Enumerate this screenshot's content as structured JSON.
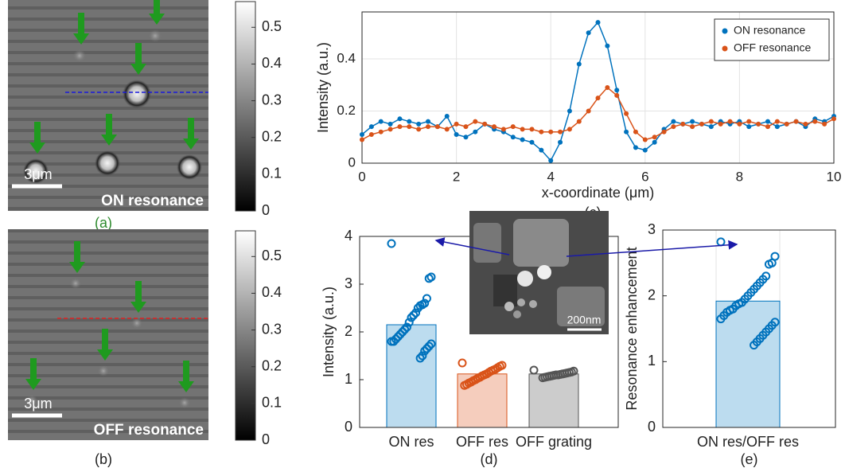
{
  "chart_data": [
    {
      "type": "image",
      "label": "(a)",
      "label_color": "#2e8b2e",
      "scale_bar": "3μm",
      "caption": "ON resonance",
      "line_color": "#1a1adc",
      "ylim": [
        0,
        0.57
      ],
      "yticks": [
        0,
        0.1,
        0.2,
        0.3,
        0.4,
        0.5
      ]
    },
    {
      "type": "image",
      "label": "(b)",
      "label_color": "#222222",
      "scale_bar": "3μm",
      "caption": "OFF resonance",
      "line_color": "#e02020",
      "ylim": [
        0,
        0.57
      ],
      "yticks": [
        0,
        0.1,
        0.2,
        0.3,
        0.4,
        0.5
      ]
    },
    {
      "type": "line",
      "label": "(c)",
      "xlabel": "x-coordinate (μm)",
      "ylabel": "Intensity (a.u.)",
      "grid": true,
      "legend": "upper right",
      "xlim": [
        0,
        10
      ],
      "xticks": [
        0,
        2,
        4,
        6,
        8,
        10
      ],
      "ylim": [
        0,
        0.58
      ],
      "yticks": [
        0,
        0.2,
        0.4
      ],
      "x": [
        0,
        0.2,
        0.4,
        0.6,
        0.8,
        1,
        1.2,
        1.4,
        1.6,
        1.8,
        2,
        2.2,
        2.4,
        2.6,
        2.8,
        3,
        3.2,
        3.4,
        3.6,
        3.8,
        4,
        4.2,
        4.4,
        4.6,
        4.8,
        5,
        5.2,
        5.4,
        5.6,
        5.8,
        6,
        6.2,
        6.4,
        6.6,
        6.8,
        7,
        7.2,
        7.4,
        7.6,
        7.8,
        8,
        8.2,
        8.4,
        8.6,
        8.8,
        9,
        9.2,
        9.4,
        9.6,
        9.8,
        10
      ],
      "series": [
        {
          "name": "ON resonance",
          "color": "#0072bd",
          "values": [
            0.11,
            0.14,
            0.16,
            0.15,
            0.17,
            0.16,
            0.15,
            0.16,
            0.14,
            0.18,
            0.11,
            0.1,
            0.12,
            0.15,
            0.13,
            0.12,
            0.1,
            0.09,
            0.08,
            0.05,
            0.01,
            0.08,
            0.2,
            0.38,
            0.5,
            0.54,
            0.45,
            0.28,
            0.12,
            0.06,
            0.05,
            0.08,
            0.13,
            0.16,
            0.15,
            0.16,
            0.15,
            0.14,
            0.16,
            0.15,
            0.16,
            0.14,
            0.15,
            0.16,
            0.14,
            0.15,
            0.16,
            0.14,
            0.17,
            0.16,
            0.18
          ]
        },
        {
          "name": "OFF resonance",
          "color": "#d95319",
          "values": [
            0.09,
            0.11,
            0.12,
            0.13,
            0.14,
            0.14,
            0.13,
            0.14,
            0.14,
            0.13,
            0.15,
            0.14,
            0.16,
            0.15,
            0.14,
            0.13,
            0.14,
            0.13,
            0.13,
            0.12,
            0.12,
            0.12,
            0.13,
            0.16,
            0.2,
            0.25,
            0.29,
            0.26,
            0.19,
            0.12,
            0.09,
            0.1,
            0.12,
            0.14,
            0.15,
            0.14,
            0.15,
            0.16,
            0.15,
            0.16,
            0.15,
            0.16,
            0.15,
            0.14,
            0.16,
            0.15,
            0.16,
            0.15,
            0.16,
            0.15,
            0.17
          ]
        }
      ]
    },
    {
      "type": "bar",
      "label": "(d)",
      "ylabel": "Intensity (a.u.)",
      "inset_label": "200nm",
      "ylim": [
        0,
        4
      ],
      "yticks": [
        0,
        1,
        2,
        3,
        4
      ],
      "categories": [
        "ON res",
        "OFF res",
        "OFF grating"
      ],
      "values": [
        2.15,
        1.12,
        1.12
      ],
      "colors": [
        "#bcdcef",
        "#f5cdbd",
        "#cccccc"
      ],
      "edge_colors": [
        "#0072bd",
        "#d95319",
        "#555555"
      ],
      "points": [
        [
          3.85,
          3.15,
          3.12,
          2.7,
          2.6,
          2.57,
          2.55,
          2.5,
          2.4,
          2.35,
          2.3,
          2.2,
          2.1,
          2.05,
          2.0,
          1.95,
          1.9,
          1.85,
          1.8,
          1.8,
          1.75,
          1.7,
          1.65,
          1.6,
          1.5,
          1.45
        ],
        [
          1.35,
          1.3,
          1.28,
          1.25,
          1.22,
          1.2,
          1.18,
          1.15,
          1.12,
          1.1,
          1.08,
          1.05,
          1.03,
          1.0,
          0.98,
          0.95,
          0.93,
          0.9,
          0.88
        ],
        [
          1.2,
          1.18,
          1.16,
          1.15,
          1.14,
          1.13,
          1.12,
          1.11,
          1.1,
          1.1,
          1.09,
          1.08,
          1.07,
          1.06,
          1.05,
          1.04
        ]
      ]
    },
    {
      "type": "bar",
      "label": "(e)",
      "ylabel": "Resonance enhancement",
      "ylim": [
        0,
        3
      ],
      "yticks": [
        0,
        1,
        2,
        3
      ],
      "categories": [
        "ON res/OFF res"
      ],
      "values": [
        1.92
      ],
      "colors": [
        "#bcdcef"
      ],
      "edge_colors": [
        "#0072bd"
      ],
      "points": [
        [
          2.82,
          2.6,
          2.5,
          2.48,
          2.3,
          2.25,
          2.2,
          2.15,
          2.1,
          2.05,
          2.0,
          1.95,
          1.9,
          1.88,
          1.85,
          1.8,
          1.78,
          1.75,
          1.7,
          1.65,
          1.6,
          1.55,
          1.5,
          1.45,
          1.4,
          1.35,
          1.3,
          1.25
        ]
      ]
    }
  ]
}
